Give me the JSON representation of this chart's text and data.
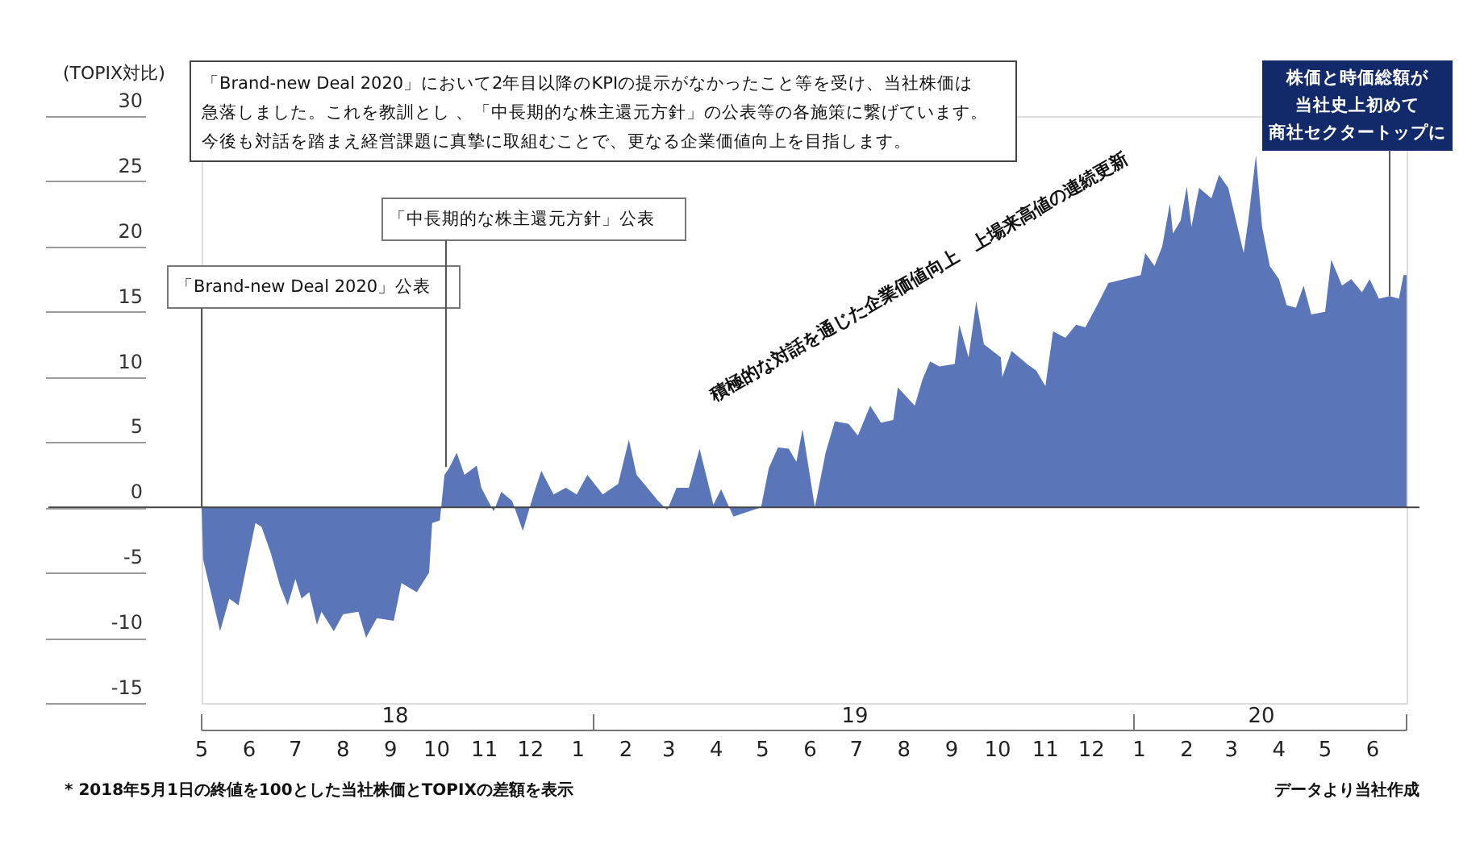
{
  "chart_data": {
    "type": "area",
    "ylabel": "(TOPIX対比)",
    "color": "#5b75b9",
    "x": [
      "2018-05-01",
      "2018-05-02",
      "2018-05-13",
      "2018-05-19",
      "2018-05-25",
      "2018-06-05",
      "2018-06-09",
      "2018-06-15",
      "2018-06-21",
      "2018-06-26",
      "2018-07-01",
      "2018-07-05",
      "2018-07-10",
      "2018-07-15",
      "2018-07-18",
      "2018-07-26",
      "2018-08-01",
      "2018-08-11",
      "2018-08-16",
      "2018-08-23",
      "2018-09-03",
      "2018-09-08",
      "2018-09-18",
      "2018-09-26",
      "2018-09-28",
      "2018-10-03",
      "2018-10-06",
      "2018-10-09",
      "2018-10-14",
      "2018-10-19",
      "2018-10-27",
      "2018-10-30",
      "2018-11-07",
      "2018-11-12",
      "2018-11-19",
      "2018-11-26",
      "2018-12-03",
      "2018-12-08",
      "2018-12-16",
      "2018-12-24",
      "2018-12-31",
      "2019-01-07",
      "2019-01-17",
      "2019-01-27",
      "2019-02-03",
      "2019-02-08",
      "2019-02-15",
      "2019-02-22",
      "2019-02-28",
      "2019-03-06",
      "2019-03-14",
      "2019-03-21",
      "2019-03-30",
      "2019-04-04",
      "2019-04-12",
      "2019-04-30",
      "2019-05-05",
      "2019-05-11",
      "2019-05-18",
      "2019-05-23",
      "2019-05-27",
      "2019-06-04",
      "2019-06-11",
      "2019-06-17",
      "2019-06-26",
      "2019-07-02",
      "2019-07-10",
      "2019-07-17",
      "2019-07-25",
      "2019-07-28",
      "2019-08-08",
      "2019-08-13",
      "2019-08-18",
      "2019-08-24",
      "2019-09-03",
      "2019-09-06",
      "2019-09-12",
      "2019-09-17",
      "2019-09-22",
      "2019-10-03",
      "2019-10-04",
      "2019-10-10",
      "2019-10-20",
      "2019-10-26",
      "2019-11-01",
      "2019-11-06",
      "2019-11-14",
      "2019-11-21",
      "2019-11-27",
      "2019-12-06",
      "2019-12-12",
      "2020-01-02",
      "2020-01-05",
      "2020-01-11",
      "2020-01-16",
      "2020-01-21",
      "2020-01-23",
      "2020-01-28",
      "2020-02-01",
      "2020-02-04",
      "2020-02-09",
      "2020-02-17",
      "2020-02-22",
      "2020-02-28",
      "2020-03-04",
      "2020-03-09",
      "2020-03-12",
      "2020-03-17",
      "2020-03-21",
      "2020-03-26",
      "2020-04-01",
      "2020-04-06",
      "2020-04-12",
      "2020-04-17",
      "2020-04-22",
      "2020-05-01",
      "2020-05-05",
      "2020-05-12",
      "2020-05-18",
      "2020-05-25",
      "2020-05-30",
      "2020-06-05",
      "2020-06-12",
      "2020-06-18",
      "2020-06-21",
      "2020-06-23"
    ],
    "values": [
      0,
      -4,
      -9.5,
      -7,
      -7.5,
      -1.2,
      -1.5,
      -3.5,
      -6,
      -7.5,
      -5.5,
      -7,
      -6.5,
      -9,
      -8,
      -9.5,
      -8.2,
      -8,
      -10,
      -8.5,
      -8.7,
      -5.8,
      -6.5,
      -5,
      -1.2,
      -1,
      2.5,
      3,
      4.2,
      2.5,
      3.2,
      1.5,
      -0.3,
      1.2,
      0.5,
      -1.8,
      1,
      2.8,
      1,
      1.5,
      1,
      2.5,
      1,
      1.8,
      5.2,
      2.5,
      1.5,
      0.5,
      -0.2,
      1.5,
      1.5,
      4.5,
      0.2,
      1.4,
      -0.7,
      0,
      3,
      4.6,
      4.5,
      3.5,
      6,
      0,
      4.2,
      6.6,
      6.4,
      5.5,
      7.8,
      6.5,
      6.7,
      9.2,
      7.8,
      9.8,
      11.2,
      10.8,
      11,
      14,
      11.5,
      15.8,
      12.5,
      11.5,
      10,
      12,
      11,
      10.5,
      9.3,
      13.5,
      13,
      14,
      13.8,
      15.8,
      17.2,
      17.8,
      19.5,
      18.5,
      20,
      23.3,
      21,
      22,
      24.6,
      21.5,
      24.5,
      23.7,
      25.5,
      24.5,
      22,
      19.5,
      22,
      27,
      21.5,
      18.5,
      17.5,
      15.5,
      15.3,
      17,
      14.8,
      15,
      19,
      17,
      17.5,
      16.5,
      17.5,
      16,
      16.2,
      16,
      17.8,
      17.8
    ],
    "xlim": [
      "2018-05-01",
      "2020-06-23"
    ],
    "xticks": [
      {
        "value": "2018-05-01",
        "label": "5"
      },
      {
        "value": "2018-06-01",
        "label": "6"
      },
      {
        "value": "2018-07-01",
        "label": "7"
      },
      {
        "value": "2018-08-01",
        "label": "8"
      },
      {
        "value": "2018-09-01",
        "label": "9"
      },
      {
        "value": "2018-10-01",
        "label": "10"
      },
      {
        "value": "2018-11-01",
        "label": "11"
      },
      {
        "value": "2018-12-01",
        "label": "12"
      },
      {
        "value": "2019-01-01",
        "label": "1"
      },
      {
        "value": "2019-02-01",
        "label": "2"
      },
      {
        "value": "2019-03-01",
        "label": "3"
      },
      {
        "value": "2019-04-01",
        "label": "4"
      },
      {
        "value": "2019-05-01",
        "label": "5"
      },
      {
        "value": "2019-06-01",
        "label": "6"
      },
      {
        "value": "2019-07-01",
        "label": "7"
      },
      {
        "value": "2019-08-01",
        "label": "8"
      },
      {
        "value": "2019-09-01",
        "label": "9"
      },
      {
        "value": "2019-10-01",
        "label": "10"
      },
      {
        "value": "2019-11-01",
        "label": "11"
      },
      {
        "value": "2019-12-01",
        "label": "12"
      },
      {
        "value": "2020-01-01",
        "label": "1"
      },
      {
        "value": "2020-02-01",
        "label": "2"
      },
      {
        "value": "2020-03-01",
        "label": "3"
      },
      {
        "value": "2020-04-01",
        "label": "4"
      },
      {
        "value": "2020-05-01",
        "label": "5"
      },
      {
        "value": "2020-06-01",
        "label": "6"
      }
    ],
    "ylim": [
      -15,
      30
    ],
    "yticks": [
      -15,
      -10,
      -5,
      0,
      5,
      10,
      15,
      20,
      25,
      30
    ],
    "ref_lines": [
      {
        "axis": "y",
        "value": 0,
        "color": "#444444"
      }
    ],
    "annotations": [
      "「Brand-new Deal 2020」において2年目以降のKPIの提示がなかったこと等を受け、当社株価は急落しました。これを教訓とし 、「中長期的な株主還元方針」の公表等の各施策に繋げています。今後も対話を踏まえ経営課題に真摯に取組むことで、更なる企業価値向上を目指します。",
      {
        "text": "「Brand-new Deal 2020」公表",
        "x": "2018-05-01",
        "y": 0
      },
      {
        "text": "「中長期的な株主還元方針」公表",
        "x": "2018-10-07",
        "y": 3.1
      },
      {
        "text": "株価と時価総額が当社史上初めて商社セクタートップに",
        "x": "2020-06-12",
        "y": 16.2
      },
      "積極的な対話を通じた企業価値向上　上場来高値の連続更新",
      "18",
      "19",
      "20",
      "* 2018年5月1日の終値を100とした当社株価とTOPIXの差額を表示",
      "データより当社作成"
    ]
  }
}
